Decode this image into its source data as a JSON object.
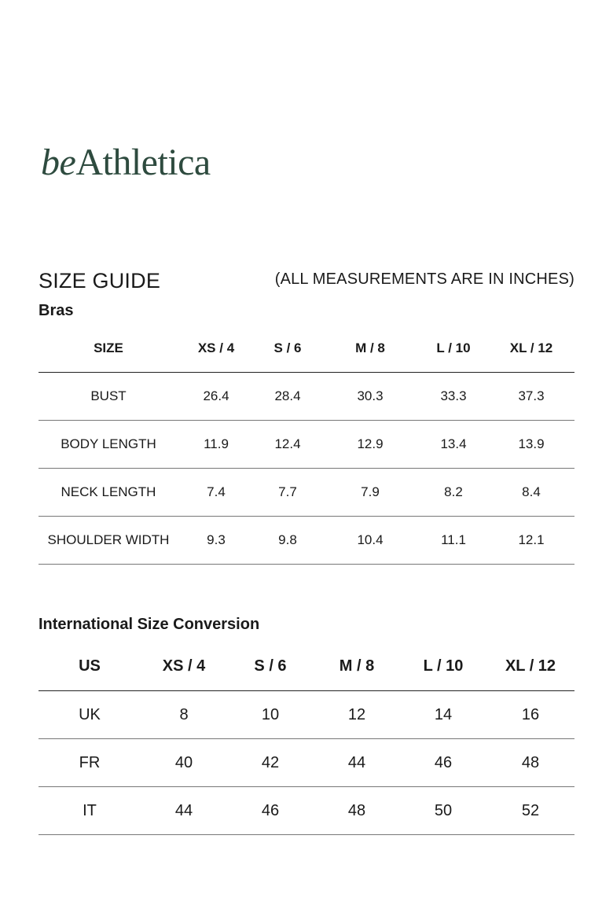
{
  "brand": {
    "prefix": "be",
    "name": "Athletica"
  },
  "header": {
    "title": "SIZE GUIDE",
    "note": "(ALL MEASUREMENTS ARE IN INCHES)"
  },
  "bras": {
    "title": "Bras",
    "columns": [
      "SIZE",
      "XS / 4",
      "S / 6",
      "M / 8",
      "L / 10",
      "XL / 12"
    ],
    "rows": [
      [
        "BUST",
        "26.4",
        "28.4",
        "30.3",
        "33.3",
        "37.3"
      ],
      [
        "BODY LENGTH",
        "11.9",
        "12.4",
        "12.9",
        "13.4",
        "13.9"
      ],
      [
        "NECK LENGTH",
        "7.4",
        "7.7",
        "7.9",
        "8.2",
        "8.4"
      ],
      [
        "SHOULDER WIDTH",
        "9.3",
        "9.8",
        "10.4",
        "11.1",
        "12.1"
      ]
    ]
  },
  "conversion": {
    "title": "International Size Conversion",
    "columns": [
      "US",
      "XS / 4",
      "S / 6",
      "M / 8",
      "L / 10",
      "XL / 12"
    ],
    "rows": [
      [
        "UK",
        "8",
        "10",
        "12",
        "14",
        "16"
      ],
      [
        "FR",
        "40",
        "42",
        "44",
        "46",
        "48"
      ],
      [
        "IT",
        "44",
        "46",
        "48",
        "50",
        "52"
      ]
    ]
  }
}
